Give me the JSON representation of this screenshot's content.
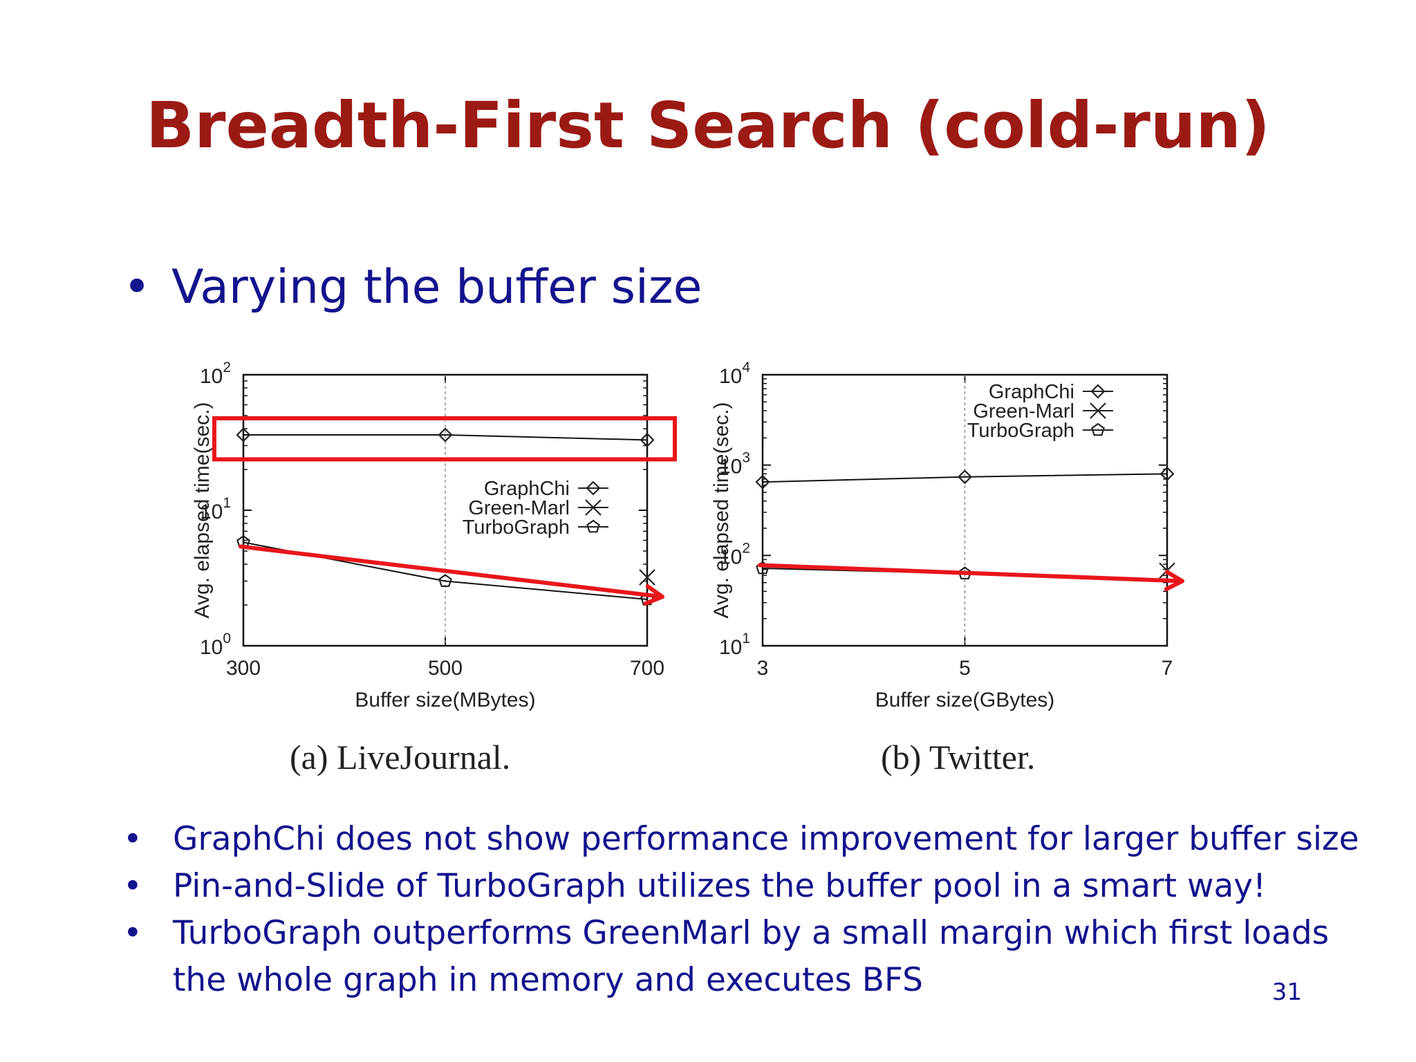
{
  "slide": {
    "title": "Breadth-First Search (cold-run)",
    "main_bullet": "Varying the buffer size",
    "bullet_symbol": "•",
    "bullets": [
      "GraphChi does not show performance improvement for larger buffer size",
      "Pin-and-Slide of TurboGraph utilizes the buffer pool in a smart way!",
      "TurboGraph outperforms GreenMarl by a small margin which first loads",
      "the whole graph in memory and executes BFS"
    ],
    "page_number": "31"
  },
  "colors": {
    "title": "#9b1a14",
    "text": "#13138e",
    "highlight": "#e8161b",
    "series_line": "#111111"
  },
  "chart_data": [
    {
      "type": "line",
      "caption": "(a) LiveJournal.",
      "xlabel": "Buffer size(MBytes)",
      "ylabel": "Avg. elapsed time(sec.)",
      "yscale": "log",
      "ylim": [
        1,
        100
      ],
      "yticks": [
        {
          "value": 1,
          "base": "10",
          "exp": "0"
        },
        {
          "value": 10,
          "base": "10",
          "exp": "1"
        },
        {
          "value": 100,
          "base": "10",
          "exp": "2"
        }
      ],
      "x": [
        300,
        500,
        700
      ],
      "xtick_labels": [
        "300",
        "500",
        "700"
      ],
      "legend_position": "middle-right",
      "series": [
        {
          "name": "GraphChi",
          "marker": "diamond",
          "values": [
            36,
            36,
            33
          ]
        },
        {
          "name": "Green-Marl",
          "marker": "x",
          "values": [
            null,
            null,
            3.2
          ]
        },
        {
          "name": "TurboGraph",
          "marker": "pentagon",
          "values": [
            5.8,
            3.0,
            2.2
          ]
        }
      ],
      "annotations": [
        {
          "kind": "highlight-box",
          "target": "GraphChi"
        },
        {
          "kind": "trend-arrow",
          "target": "TurboGraph",
          "from": 5.4,
          "to": 2.3
        }
      ]
    },
    {
      "type": "line",
      "caption": "(b) Twitter.",
      "xlabel": "Buffer size(GBytes)",
      "ylabel": "Avg. elapsed time(sec.)",
      "yscale": "log",
      "ylim": [
        10,
        10000
      ],
      "yticks": [
        {
          "value": 10,
          "base": "10",
          "exp": "1"
        },
        {
          "value": 100,
          "base": "10",
          "exp": "2"
        },
        {
          "value": 1000,
          "base": "10",
          "exp": "3"
        },
        {
          "value": 10000,
          "base": "10",
          "exp": "4"
        }
      ],
      "x": [
        3,
        5,
        7
      ],
      "xtick_labels": [
        "3",
        "5",
        "7"
      ],
      "legend_position": "top-right",
      "series": [
        {
          "name": "GraphChi",
          "marker": "diamond",
          "values": [
            650,
            740,
            800
          ]
        },
        {
          "name": "Green-Marl",
          "marker": "x",
          "values": [
            null,
            null,
            68
          ]
        },
        {
          "name": "TurboGraph",
          "marker": "pentagon",
          "values": [
            72,
            63,
            null
          ]
        }
      ],
      "annotations": [
        {
          "kind": "trend-arrow",
          "target": "TurboGraph",
          "from": 78,
          "to": 52
        }
      ]
    }
  ]
}
